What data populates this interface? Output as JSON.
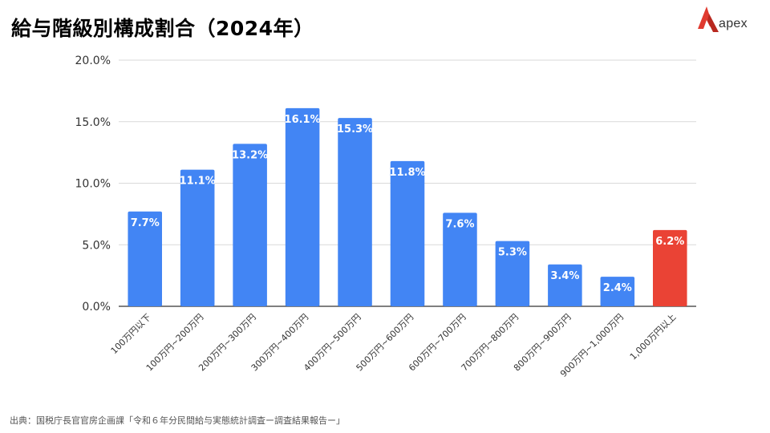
{
  "title": "給与階級別構成割合（2024年）",
  "logo": {
    "text": "apex",
    "icon": "apex-logo-icon",
    "accent_color": "#e03a2f"
  },
  "source": "出典：国税庁長官官房企画課「令和６年分民間給与実態統計調査ー調査結果報告ー」",
  "chart_data": {
    "type": "bar",
    "title": "",
    "xlabel": "",
    "ylabel": "",
    "categories": [
      "100万円以下",
      "100万円~200万円",
      "200万円~300万円",
      "300万円~400万円",
      "400万円~500万円",
      "500万円~600万円",
      "600万円~700万円",
      "700万円~800万円",
      "800万円~900万円",
      "900万円~1,000万円",
      "1,000万円以上"
    ],
    "values": [
      7.7,
      11.1,
      13.2,
      16.1,
      15.3,
      11.8,
      7.6,
      5.3,
      3.4,
      2.4,
      6.2
    ],
    "value_labels": [
      "7.7%",
      "11.1%",
      "13.2%",
      "16.1%",
      "15.3%",
      "11.8%",
      "7.6%",
      "5.3%",
      "3.4%",
      "2.4%",
      "6.2%"
    ],
    "ylim": [
      0,
      20
    ],
    "yticks": [
      0,
      5,
      10,
      15,
      20
    ],
    "ytick_labels": [
      "0.0%",
      "5.0%",
      "10.0%",
      "15.0%",
      "20.0%"
    ],
    "grid": true,
    "legend": "none",
    "colors": {
      "bar": "#4285f4",
      "highlight": "#ea4335",
      "grid": "#d9d9d9",
      "axis": "#333333"
    },
    "highlight_index": 10
  }
}
